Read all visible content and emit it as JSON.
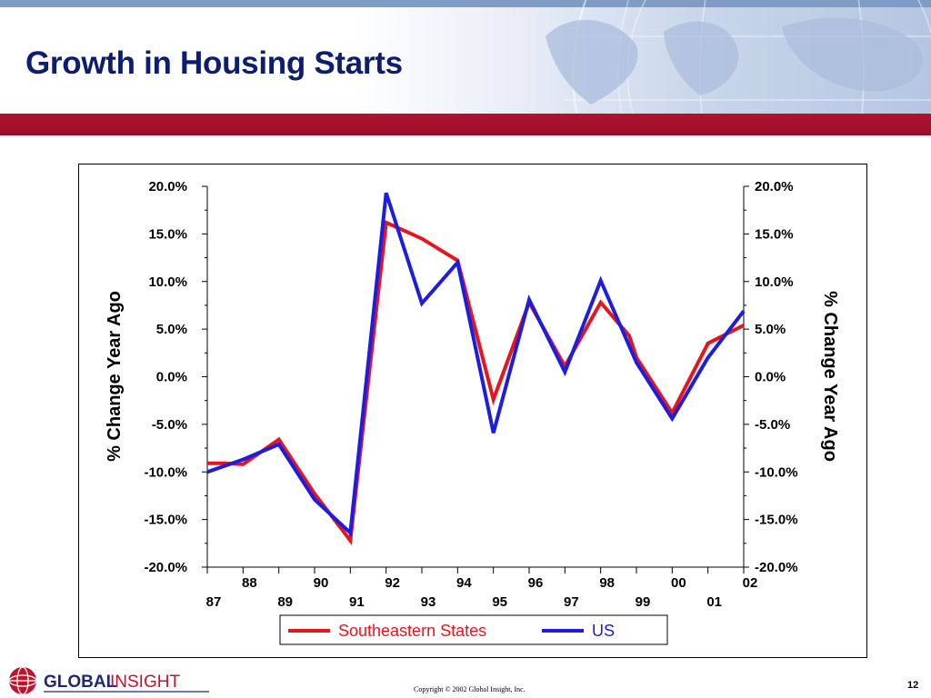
{
  "slide": {
    "title": "Growth in Housing Starts",
    "copyright": "Copyright © 2002 Global Insight, Inc.",
    "page_number": "12",
    "logo": {
      "word_bold": "GLOBAL",
      "word_light": "INSIGHT"
    },
    "colors": {
      "title": "#0d1d6f",
      "band": "#9a0e27",
      "logo_red": "#c0142e",
      "logo_navy": "#1f2a6d"
    }
  },
  "chart_data": {
    "type": "line",
    "title": "",
    "ylabel_left": "% Change Year Ago",
    "ylabel_right": "% Change Year Ago",
    "ylim": [
      -20,
      20
    ],
    "yticks": [
      20,
      15,
      10,
      5,
      0,
      -5,
      -10,
      -15,
      -20
    ],
    "ytick_labels": [
      "20.0%",
      "15.0%",
      "10.0%",
      "5.0%",
      "0.0%",
      "-5.0%",
      "-10.0%",
      "-15.0%",
      "-20.0%"
    ],
    "x": [
      87,
      88,
      89,
      90,
      91,
      92,
      93,
      94,
      95,
      96,
      97,
      98,
      99,
      100,
      101,
      102
    ],
    "xtick_labels": [
      "87",
      "88",
      "89",
      "90",
      "91",
      "92",
      "93",
      "94",
      "95",
      "96",
      "97",
      "98",
      "99",
      "00",
      "01",
      "02"
    ],
    "grid": false,
    "legend_position": "bottom",
    "series": [
      {
        "name": "Southeastern States",
        "color": "#e8141c",
        "points": [
          [
            87,
            -9.1
          ],
          [
            87.5,
            -9.1
          ],
          [
            88,
            -9.2
          ],
          [
            89,
            -6.6
          ],
          [
            90,
            -12.3
          ],
          [
            91,
            -17.2
          ],
          [
            92,
            16.2
          ],
          [
            93,
            14.5
          ],
          [
            94,
            12.2
          ],
          [
            95,
            -2.4
          ],
          [
            96,
            7.8
          ],
          [
            97,
            1.1
          ],
          [
            98,
            7.8
          ],
          [
            98.8,
            4.3
          ],
          [
            99,
            2.0
          ],
          [
            100,
            -3.8
          ],
          [
            101,
            3.5
          ],
          [
            102,
            5.4
          ]
        ]
      },
      {
        "name": "US",
        "color": "#1d1de0",
        "points": [
          [
            87,
            -10.0
          ],
          [
            88,
            -8.7
          ],
          [
            89,
            -7.1
          ],
          [
            90,
            -12.9
          ],
          [
            91,
            -16.4
          ],
          [
            92,
            19.3
          ],
          [
            93,
            7.7
          ],
          [
            94,
            12.0
          ],
          [
            95,
            -5.9
          ],
          [
            96,
            8.1
          ],
          [
            97,
            0.5
          ],
          [
            98,
            10.1
          ],
          [
            99,
            1.5
          ],
          [
            100,
            -4.4
          ],
          [
            101,
            2.0
          ],
          [
            102,
            6.9
          ]
        ]
      }
    ]
  }
}
